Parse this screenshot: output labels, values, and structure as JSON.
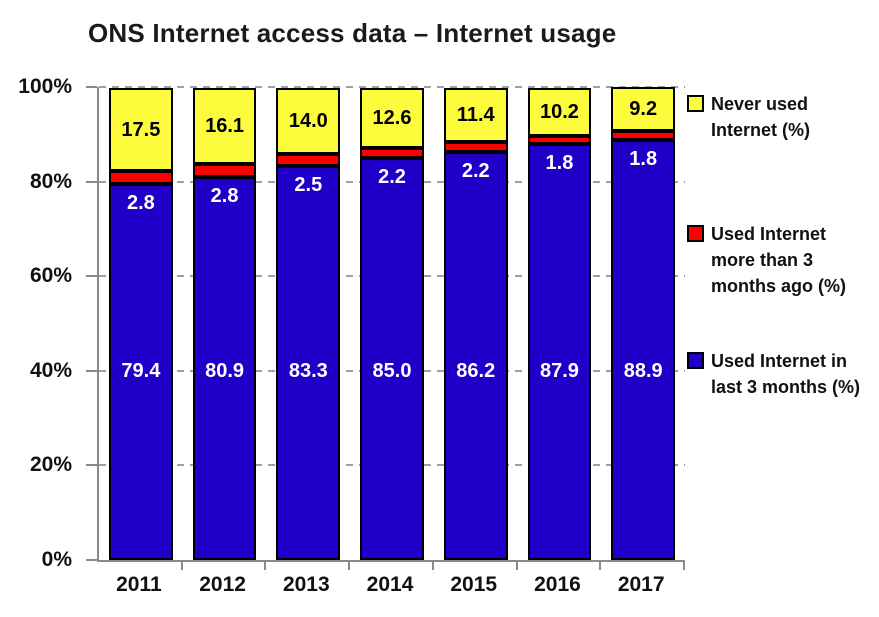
{
  "title": "ONS Internet access data – Internet usage",
  "chart_data": {
    "type": "bar",
    "stacked": true,
    "title": "ONS Internet access data – Internet usage",
    "categories": [
      "2011",
      "2012",
      "2013",
      "2014",
      "2015",
      "2016",
      "2017"
    ],
    "series": [
      {
        "name": "Used Internet in last 3 months (%)",
        "color": "#2000C8",
        "label_color": "#FFFFFF",
        "values": [
          79.4,
          80.9,
          83.3,
          85.0,
          86.2,
          87.9,
          88.9
        ]
      },
      {
        "name": "Used Internet more than 3 months ago (%)",
        "color": "#FF0000",
        "label_color": "#FFFFFF",
        "values": [
          2.8,
          2.8,
          2.5,
          2.2,
          2.2,
          1.8,
          1.8
        ]
      },
      {
        "name": "Never used Internet (%)",
        "color": "#FCFC3C",
        "label_color": "#000000",
        "values": [
          17.5,
          16.1,
          14.0,
          12.6,
          11.4,
          10.2,
          9.2
        ]
      }
    ],
    "xlabel": "",
    "ylabel": "",
    "ylim": [
      0,
      100
    ],
    "y_ticks": [
      "0%",
      "20%",
      "40%",
      "60%",
      "80%",
      "100%"
    ],
    "grid": "dashed-horizontal",
    "legend_position": "right",
    "legend": [
      {
        "lines": [
          "Never used",
          "Internet (%)"
        ],
        "color": "#FCFC3C"
      },
      {
        "lines": [
          "Used Internet",
          "more than 3",
          "months ago (%)"
        ],
        "color": "#FF0000"
      },
      {
        "lines": [
          "Used Internet in",
          "last 3 months (%)"
        ],
        "color": "#2000C8"
      }
    ],
    "colors": {
      "axis": "#8A8A8A",
      "gridline": "#A0A0A0",
      "segment_border": "#000000"
    }
  }
}
